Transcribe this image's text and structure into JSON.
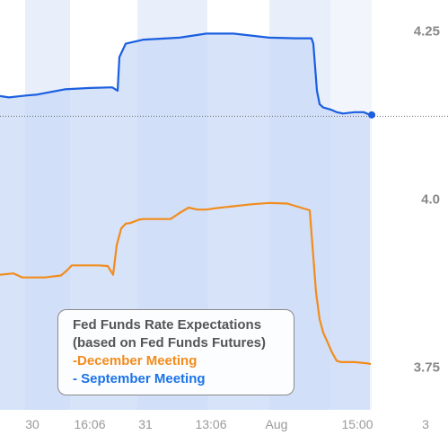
{
  "legend": {
    "line1": "Fed Funds Rate Expectations",
    "line2": "(based on Fed Funds Futures)",
    "december": "-December Meeting",
    "september": "- September Meeting"
  },
  "chart_data": {
    "type": "line",
    "ylim": [
      3.685,
      4.295
    ],
    "yticks": [
      {
        "value": 4.25,
        "label": "4.25"
      },
      {
        "value": 4.0,
        "label": "4.0"
      },
      {
        "value": 3.75,
        "label": "3.75"
      }
    ],
    "xticks": [
      "30",
      "16:06",
      "31",
      "13:06",
      "Aug",
      "15:00",
      "3"
    ],
    "reference_line": 4.122,
    "colors": {
      "december": "#f28c1c",
      "september": "#1a73e8",
      "area": "#d4e0f8",
      "band": "#e8eefa"
    },
    "series": [
      {
        "name": "September Meeting",
        "x": [
          0,
          10,
          30,
          40,
          68,
          72,
          100,
          125,
          131,
          133,
          140,
          160,
          200,
          230,
          260,
          300,
          330,
          347,
          349,
          353,
          356,
          360,
          368,
          375,
          382,
          395,
          405,
          412
        ],
        "values": [
          4.152,
          4.15,
          4.153,
          4.154,
          4.161,
          4.162,
          4.164,
          4.165,
          4.16,
          4.21,
          4.23,
          4.236,
          4.239,
          4.245,
          4.245,
          4.239,
          4.238,
          4.238,
          4.23,
          4.16,
          4.14,
          4.135,
          4.132,
          4.128,
          4.126,
          4.128,
          4.128,
          4.124
        ]
      },
      {
        "name": "December Meeting",
        "x": [
          0,
          15,
          20,
          25,
          30,
          50,
          68,
          75,
          80,
          90,
          110,
          120,
          126,
          130,
          135,
          140,
          145,
          155,
          160,
          170,
          190,
          200,
          210,
          220,
          230,
          240,
          260,
          280,
          300,
          320,
          340,
          345,
          348,
          352,
          356,
          360,
          365,
          370,
          375,
          380,
          395,
          410,
          413
        ],
        "values": [
          3.886,
          3.888,
          3.885,
          3.882,
          3.882,
          3.882,
          3.885,
          3.893,
          3.9,
          3.9,
          3.9,
          3.899,
          3.886,
          3.93,
          3.955,
          3.962,
          3.963,
          3.968,
          3.969,
          3.969,
          3.969,
          3.978,
          3.986,
          3.983,
          3.983,
          3.985,
          3.988,
          3.991,
          3.993,
          3.992,
          3.984,
          3.982,
          3.93,
          3.86,
          3.82,
          3.8,
          3.785,
          3.77,
          3.758,
          3.756,
          3.756,
          3.754,
          3.753
        ]
      }
    ]
  }
}
